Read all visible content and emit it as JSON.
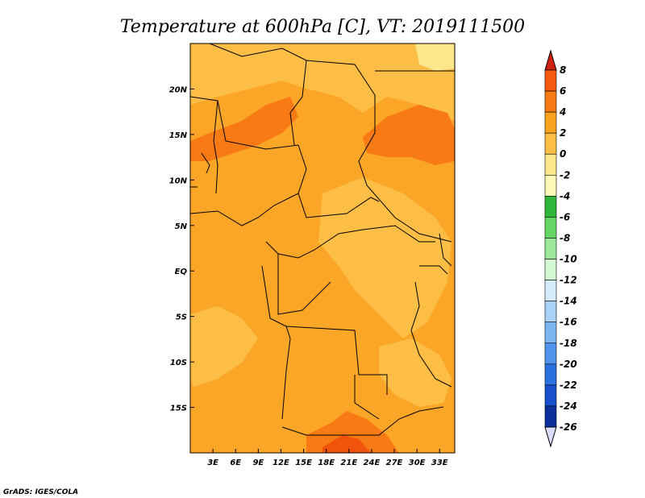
{
  "map": {
    "title": "Temperature at 600hPa [C], VT: 2019111500",
    "credit": "GrADS: IGES/COLA",
    "lon_labels": [
      "3E",
      "6E",
      "9E",
      "12E",
      "15E",
      "18E",
      "21E",
      "24E",
      "27E",
      "30E",
      "33E"
    ],
    "lat_labels": [
      "20N",
      "15N",
      "10N",
      "5N",
      "EQ",
      "5S",
      "10S",
      "15S"
    ],
    "lon_range": [
      0,
      35
    ],
    "lat_range": [
      -20,
      25
    ],
    "colors": {
      "background_field": "#fca628",
      "warm_field": "#fba21f",
      "cool_field": "#fdbe46",
      "hot_field": "#f87a14",
      "hottest_field": "#f2530c",
      "pale_field": "#fde78a",
      "border": "#000000"
    }
  },
  "colorbar": {
    "labels": [
      "8",
      "6",
      "4",
      "2",
      "0",
      "-2",
      "-4",
      "-6",
      "-8",
      "-10",
      "-12",
      "-14",
      "-16",
      "-18",
      "-20",
      "-22",
      "-24",
      "-26"
    ],
    "colors": [
      "#e9300c",
      "#f55a10",
      "#f87a14",
      "#fba21f",
      "#fdbe46",
      "#fde78a",
      "#fdf7b8",
      "#2fb537",
      "#63d664",
      "#9ce99a",
      "#d4f7d4",
      "#d6ecfb",
      "#a8d3f6",
      "#7ab6f2",
      "#4f93ec",
      "#2a70e0",
      "#174fcc",
      "#0b2f9c",
      "#0a1466"
    ],
    "top_arrow_color": "#d02010",
    "bottom_arrow_color": "#dcdcfc"
  }
}
